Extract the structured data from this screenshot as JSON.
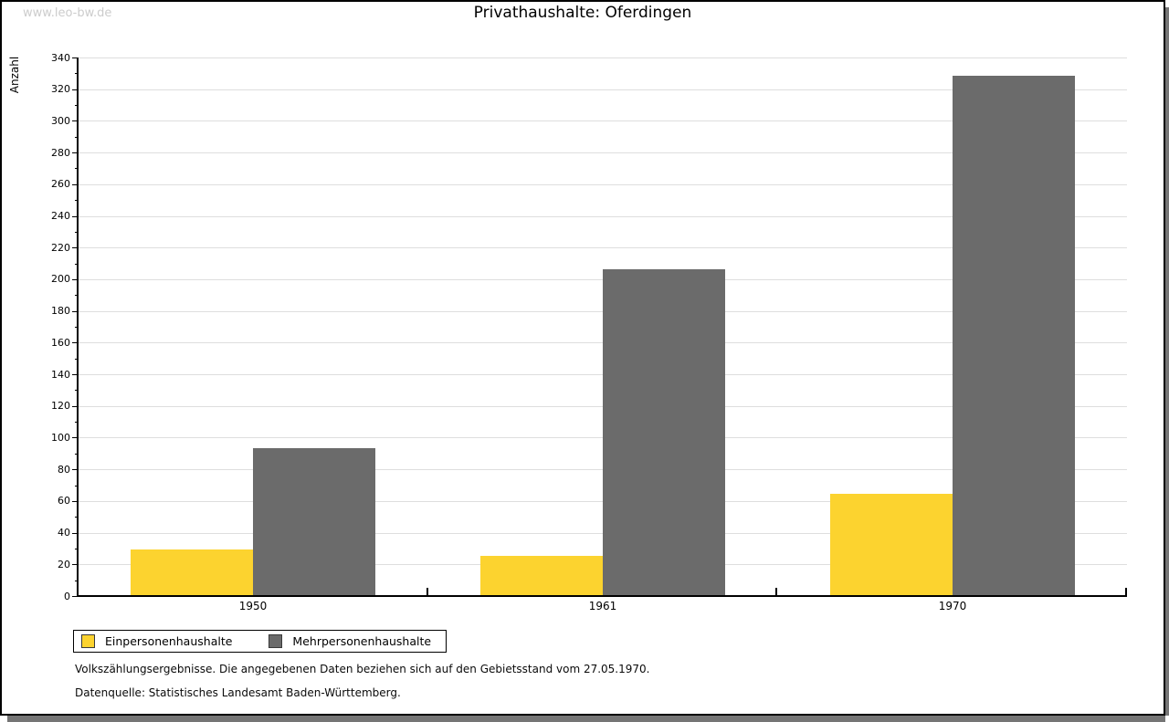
{
  "watermark": "www.leo-bw.de",
  "chart_data": {
    "type": "bar",
    "title": "Privathaushalte: Oferdingen",
    "xlabel": "",
    "ylabel": "Anzahl",
    "categories": [
      "1950",
      "1961",
      "1970"
    ],
    "series": [
      {
        "name": "Einpersonenhaushalte",
        "color": "#FCD32F",
        "values": [
          29,
          25,
          64
        ]
      },
      {
        "name": "Mehrpersonenhaushalte",
        "color": "#6B6B6B",
        "values": [
          93,
          206,
          328
        ]
      }
    ],
    "ylim": [
      0,
      340
    ],
    "ytick_major": 20,
    "ytick_minor": 10,
    "grid": "horizontal-major",
    "legend_position": "bottom-left"
  },
  "footnotes": {
    "line1": "Volkszählungsergebnisse. Die angegebenen Daten beziehen sich auf den Gebietsstand vom 27.05.1970.",
    "line2": "Datenquelle: Statistisches Landesamt Baden-Württemberg."
  }
}
